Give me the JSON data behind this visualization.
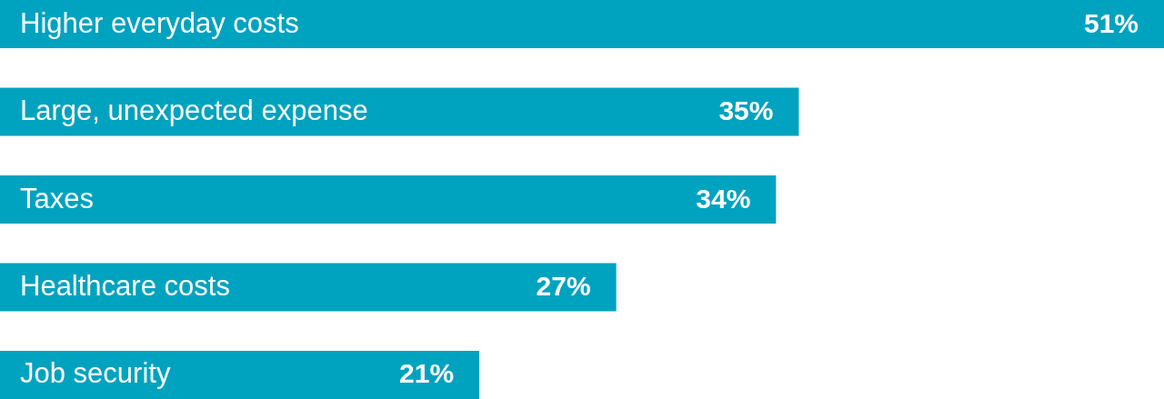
{
  "chart_data": {
    "type": "bar",
    "orientation": "horizontal",
    "categories": [
      "Higher everyday costs",
      "Large, unexpected expense",
      "Taxes",
      "Healthcare costs",
      "Job security"
    ],
    "values": [
      51,
      35,
      34,
      27,
      21
    ],
    "value_labels": [
      "51%",
      "35%",
      "34%",
      "27%",
      "21%"
    ],
    "color": "#00a3bf"
  }
}
